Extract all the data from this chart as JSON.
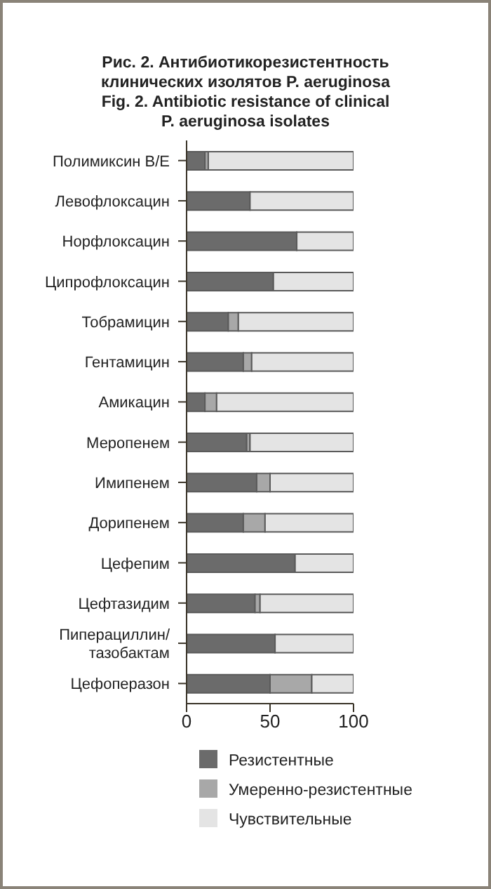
{
  "chart_data": {
    "type": "bar",
    "orientation": "horizontal",
    "stacked": true,
    "title": "Рис. 2. Антибиотикорезистентность\nклинических изолятов P. aeruginosa\nFig. 2. Antibiotic resistance of clinical\nP. aeruginosa isolates",
    "categories": [
      "Полимиксин В/Е",
      "Левофлоксацин",
      "Норфлоксацин",
      "Ципрофлоксацин",
      "Тобрамицин",
      "Гентамицин",
      "Амикацин",
      "Меропенем",
      "Имипенем",
      "Дорипенем",
      "Цефепим",
      "Цефтазидим",
      "Пиперациллин/тазобактам",
      "Цефоперазон"
    ],
    "series": [
      {
        "name": "Резистентные",
        "color": "#6b6b6b",
        "values": [
          11,
          38,
          66,
          52,
          25,
          34,
          11,
          36,
          42,
          34,
          65,
          41,
          53,
          50
        ]
      },
      {
        "name": "Умеренно-резистентные",
        "color": "#a8a8a8",
        "values": [
          2,
          0,
          0,
          0,
          6,
          5,
          7,
          2,
          8,
          13,
          0,
          3,
          0,
          25
        ]
      },
      {
        "name": "Чувствительные",
        "color": "#e4e4e4",
        "values": [
          87,
          62,
          34,
          48,
          69,
          61,
          82,
          62,
          50,
          53,
          35,
          56,
          47,
          25
        ]
      }
    ],
    "xlim": [
      0,
      100
    ],
    "xticks": [
      0,
      50,
      100
    ],
    "grid": false,
    "legend": "bottom"
  }
}
